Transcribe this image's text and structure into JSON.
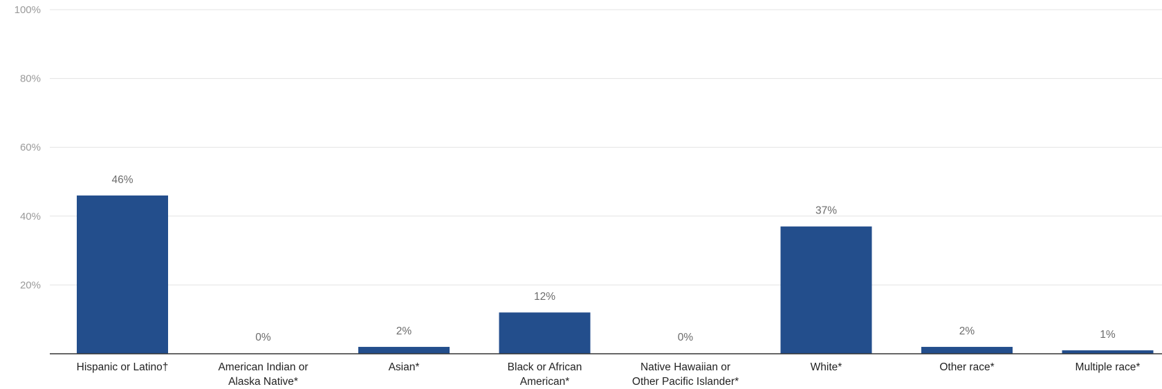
{
  "chart_data": {
    "type": "bar",
    "categories": [
      [
        "Hispanic or Latino†"
      ],
      [
        "American Indian or",
        "Alaska Native*"
      ],
      [
        "Asian*"
      ],
      [
        "Black or African",
        "American*"
      ],
      [
        "Native Hawaiian or",
        "Other Pacific Islander*"
      ],
      [
        "White*"
      ],
      [
        "Other race*"
      ],
      [
        "Multiple race*"
      ]
    ],
    "values": [
      46,
      0,
      2,
      12,
      0,
      37,
      2,
      1
    ],
    "value_labels": [
      "46%",
      "0%",
      "2%",
      "12%",
      "0%",
      "37%",
      "2%",
      "1%"
    ],
    "y_ticks": [
      20,
      40,
      60,
      80,
      100
    ],
    "y_tick_labels": [
      "20%",
      "40%",
      "60%",
      "80%",
      "100%"
    ],
    "ylim": [
      0,
      100
    ],
    "grid": true,
    "bar_color": "#234e8c",
    "title": "",
    "xlabel": "",
    "ylabel": ""
  }
}
